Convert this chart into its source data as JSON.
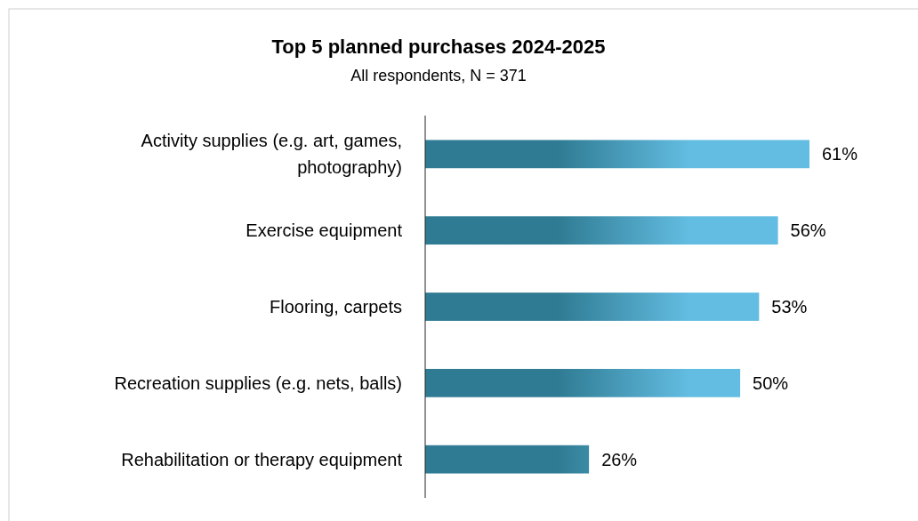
{
  "chart_data": {
    "type": "bar",
    "orientation": "horizontal",
    "title": "Top 5 planned purchases 2024-2025",
    "subtitle": "All respondents, N = 371",
    "categories": [
      "Activity supplies (e.g. art, games, photography)",
      "Exercise equipment",
      "Flooring, carpets",
      "Recreation supplies (e.g. nets, balls)",
      "Rehabilitation or therapy equipment"
    ],
    "values": [
      61,
      56,
      53,
      50,
      26
    ],
    "color": "#2f7b93",
    "tick_labels": "y",
    "data_labels": true,
    "value_labels": [
      "61%",
      "56%",
      "53%",
      "50%",
      "26%"
    ]
  }
}
